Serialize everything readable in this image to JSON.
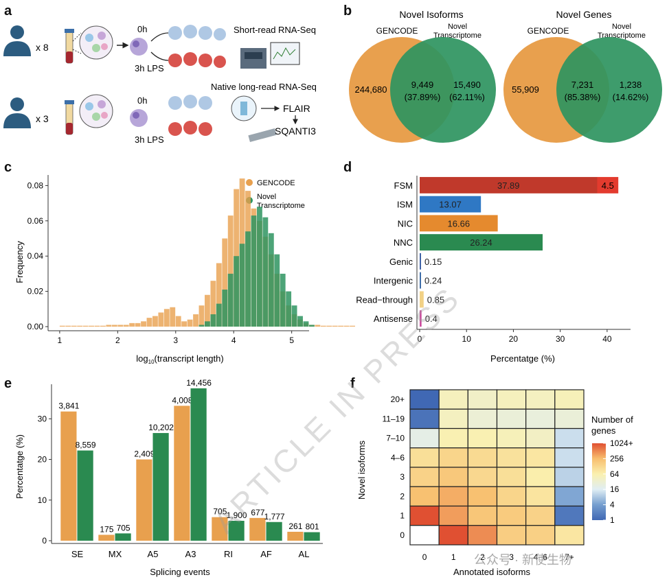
{
  "panels": {
    "a": "a",
    "b": "b",
    "c": "c",
    "d": "d",
    "e": "e",
    "f": "f"
  },
  "panel_a": {
    "donors_top": "x 8",
    "donors_bottom": "x 3",
    "t0": "0h",
    "t3": "3h LPS",
    "short_read": "Short-read RNA-Seq",
    "long_read": "Native long-read RNA-Seq",
    "flair": "FLAIR",
    "sqanti": "SQANTI3"
  },
  "panel_b": {
    "left": {
      "title": "Novel Isoforms",
      "set1": "GENCODE",
      "set2_line1": "Novel",
      "set2_line2": "Transcriptome",
      "only1": "244,680",
      "both": "9,449",
      "both_pct": "(37.89%)",
      "only2": "15,490",
      "only2_pct": "(62.11%)"
    },
    "right": {
      "title": "Novel Genes",
      "set1": "GENCODE",
      "set2_line1": "Novel",
      "set2_line2": "Transcriptome",
      "only1": "55,909",
      "both": "7,231",
      "both_pct": "(85.38%)",
      "only2": "1,238",
      "only2_pct": "(14.62%)"
    },
    "colors": {
      "gencode": "#E8A04E",
      "novel": "#2E9460"
    }
  },
  "chart_data": [
    {
      "panel": "c",
      "type": "histogram",
      "xlabel": "log10(transcript length)",
      "xlabel_main": "log",
      "xlabel_sub": "10",
      "xlabel_rest": "(transcript length)",
      "ylabel": "Frequency",
      "xlim": [
        0.8,
        5.3
      ],
      "ylim": [
        0,
        0.086
      ],
      "xticks": [
        "1",
        "2",
        "3",
        "4",
        "5"
      ],
      "yticks": [
        "0.00",
        "0.02",
        "0.04",
        "0.06",
        "0.08"
      ],
      "bin_start": 1.0,
      "bin_width": 0.1,
      "legend_position": "top-right",
      "series": [
        {
          "name": "GENCODE",
          "legend_line1": "GENCODE",
          "color": "#E8A04E",
          "values": [
            0.0005,
            0.0005,
            0.0005,
            0.0005,
            0.0005,
            0.0005,
            0.0005,
            0.0005,
            0.001,
            0.001,
            0.001,
            0.001,
            0.002,
            0.002,
            0.003,
            0.005,
            0.006,
            0.008,
            0.01,
            0.011,
            0.006,
            0.003,
            0.004,
            0.007,
            0.012,
            0.018,
            0.026,
            0.036,
            0.05,
            0.063,
            0.078,
            0.084,
            0.077,
            0.067,
            0.06,
            0.051,
            0.041,
            0.03,
            0.02,
            0.012,
            0.007,
            0.004,
            0.002,
            0.001,
            0.001,
            0.0005,
            0.0005,
            0.0005,
            0.0005,
            0.0005,
            0.0005
          ]
        },
        {
          "name": "Novel Transcriptome",
          "legend_line1": "Novel",
          "legend_line2": "Transcriptome",
          "color": "#2E9460",
          "values": [
            0,
            0,
            0,
            0,
            0,
            0,
            0,
            0,
            0,
            0,
            0,
            0,
            0,
            0,
            0,
            0,
            0,
            0,
            0,
            0,
            0,
            0,
            0,
            0,
            0.001,
            0.003,
            0.007,
            0.013,
            0.021,
            0.03,
            0.04,
            0.047,
            0.054,
            0.063,
            0.068,
            0.062,
            0.053,
            0.041,
            0.03,
            0.02,
            0.012,
            0.006,
            0.003,
            0.001,
            0,
            0,
            0,
            0,
            0,
            0,
            0
          ]
        }
      ]
    },
    {
      "panel": "d",
      "type": "bar",
      "orientation": "horizontal",
      "xlabel": "Percentatge (%)",
      "xlim": [
        0,
        45
      ],
      "xticks": [
        "0",
        "10",
        "20",
        "30",
        "40"
      ],
      "categories": [
        "FSM",
        "ISM",
        "NIC",
        "NNC",
        "Genic",
        "Intergenic",
        "Read−through",
        "Antisense"
      ],
      "values": [
        37.89,
        13.07,
        16.66,
        26.24,
        0.15,
        0.24,
        0.85,
        0.4
      ],
      "labels": [
        "37.89",
        "13.07",
        "16.66",
        "26.24",
        "0.15",
        "0.24",
        "0.85",
        "0.4"
      ],
      "colors": [
        "#C0392B",
        "#2F78C4",
        "#E58A2E",
        "#2A8A50",
        "#3E62A6",
        "#3E6DA8",
        "#F2D185",
        "#CC4FA0"
      ],
      "stack_extra": {
        "category": "FSM",
        "value": 4.5,
        "label": "4.5",
        "color": "#E33B2E"
      }
    },
    {
      "panel": "e",
      "type": "bar",
      "xlabel": "Splicing events",
      "ylabel": "Percentatge (%)",
      "ylim": [
        0,
        38.5
      ],
      "yticks": [
        "0",
        "10",
        "20",
        "30"
      ],
      "categories": [
        "SE",
        "MX",
        "A5",
        "A3",
        "RI",
        "AF",
        "AL"
      ],
      "series": [
        {
          "name": "GENCODE",
          "color": "#E8A04E",
          "values": [
            31.8,
            1.45,
            20.0,
            33.2,
            5.8,
            5.6,
            2.2
          ],
          "labels": [
            "3,841",
            "175",
            "2,409",
            "4,008",
            "705",
            "677",
            "261"
          ]
        },
        {
          "name": "Novel Transcriptome",
          "color": "#2A8A50",
          "values": [
            22.2,
            1.8,
            26.5,
            37.5,
            4.9,
            4.6,
            2.1
          ],
          "labels": [
            "8,559",
            "705",
            "10,202",
            "14,456",
            "1,900",
            "1,777",
            "801"
          ]
        }
      ]
    },
    {
      "panel": "f",
      "type": "heatmap",
      "xlabel": "Annotated isoforms",
      "ylabel": "Novel isoforms",
      "x_categories": [
        "0",
        "1",
        "2",
        "3",
        "4−6",
        "7+"
      ],
      "y_categories": [
        "20+",
        "11–19",
        "7–10",
        "4–6",
        "3",
        "2",
        "1",
        "0"
      ],
      "values_log2": [
        [
          1.0,
          5.6,
          5.3,
          5.6,
          5.5,
          5.7
        ],
        [
          1.2,
          5.5,
          4.9,
          4.8,
          4.7,
          4.8
        ],
        [
          4.4,
          5.9,
          5.9,
          5.7,
          5.4,
          3.6
        ],
        [
          6.7,
          7.1,
          6.9,
          6.6,
          6.4,
          3.6
        ],
        [
          7.2,
          7.6,
          7.0,
          6.7,
          6.1,
          3.3
        ],
        [
          7.9,
          8.3,
          7.9,
          7.1,
          6.5,
          2.2
        ],
        [
          10.3,
          8.6,
          7.7,
          7.5,
          7.2,
          1.3
        ],
        [
          null,
          10.5,
          8.9,
          7.4,
          7.3,
          6.4
        ]
      ],
      "legend_title_line1": "Number of",
      "legend_title_line2": "genes",
      "legend_ticks": [
        "1024+",
        "256",
        "64",
        "16",
        "4",
        "1"
      ]
    }
  ],
  "watermark": "ARTICLE IN PRESS",
  "footer_brand": "公众号 · 新使生物"
}
